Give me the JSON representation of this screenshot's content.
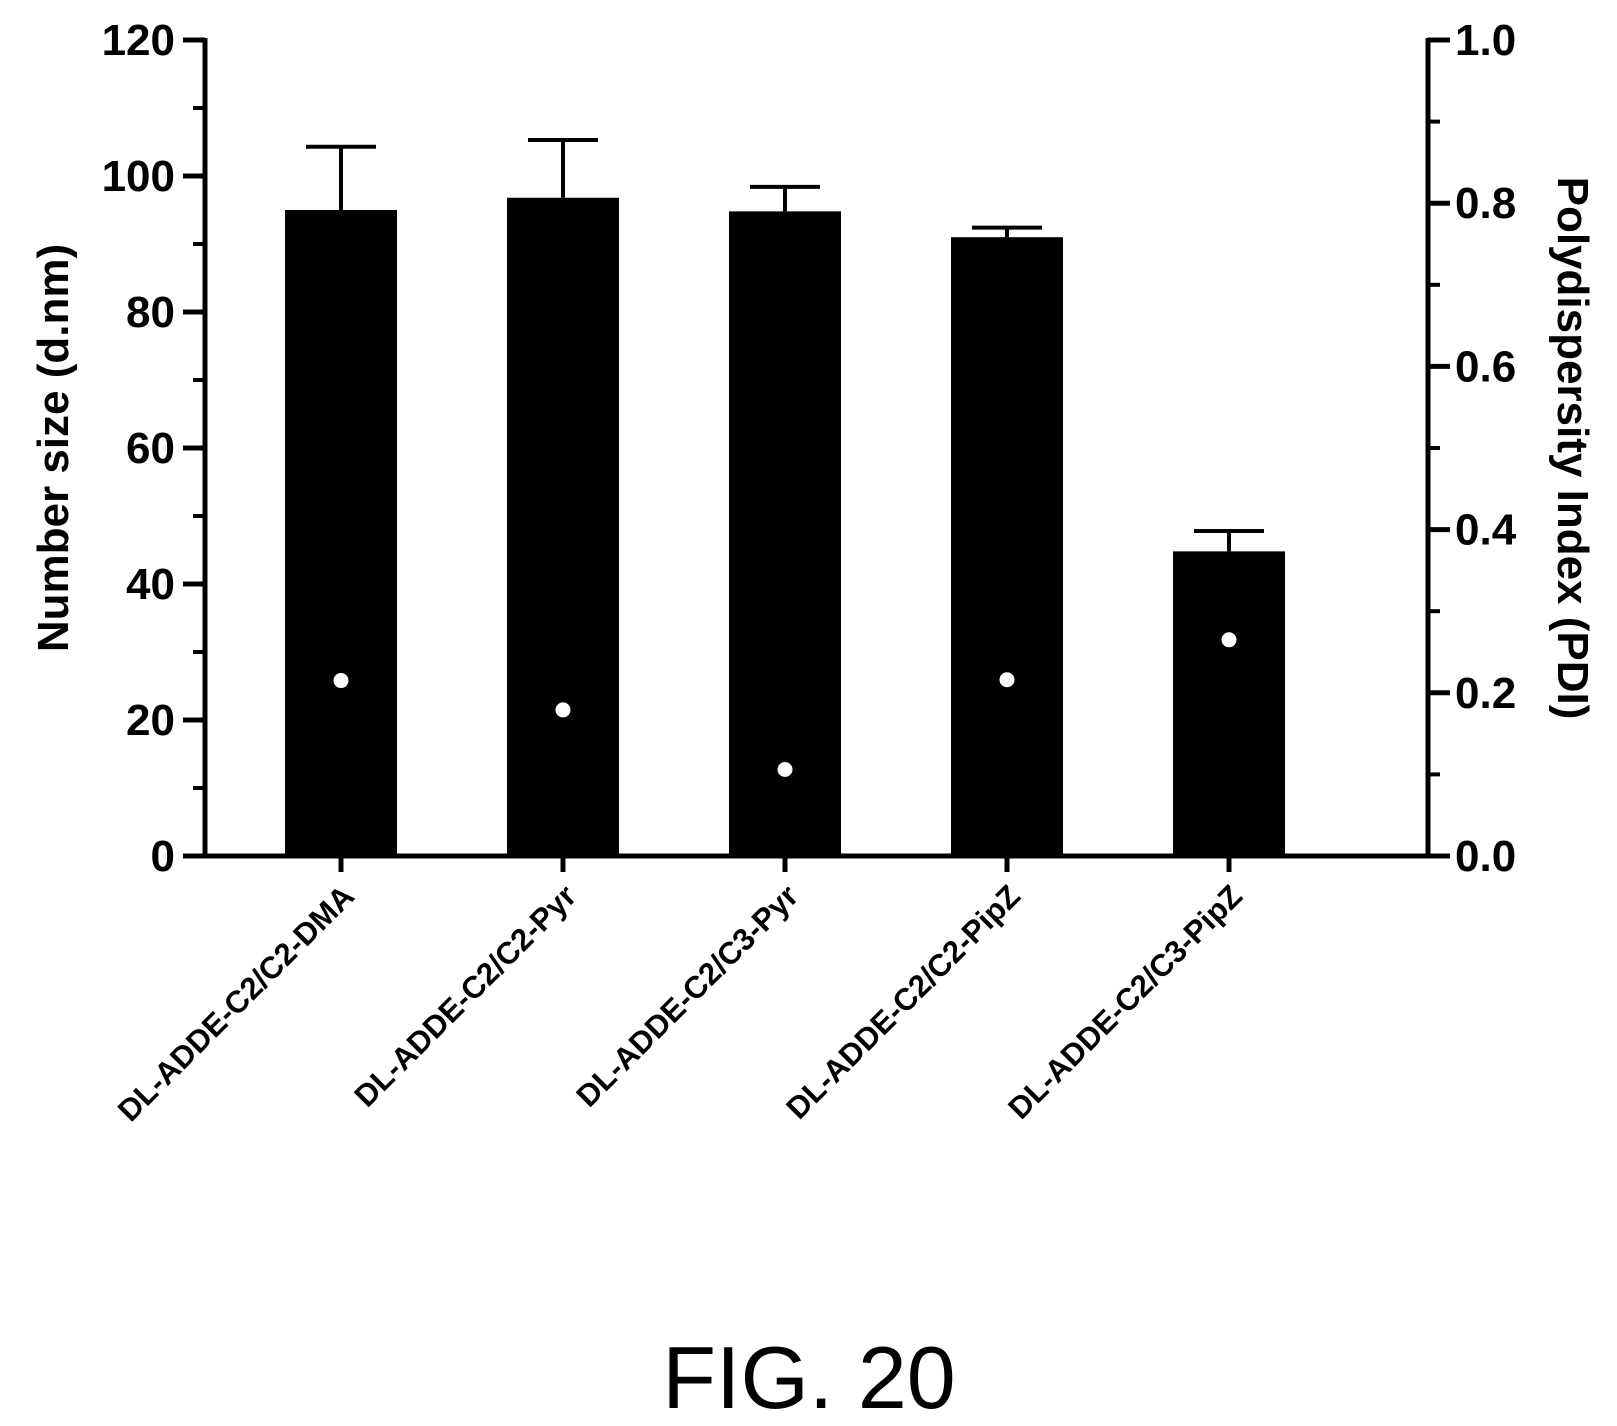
{
  "chart_data": {
    "type": "bar",
    "categories": [
      "DL-ADDE-C2/C2-DMA",
      "DL-ADDE-C2/C2-Pyr",
      "DL-ADDE-C2/C3-Pyr",
      "DL-ADDE-C2/C2-PipZ",
      "DL-ADDE-C2/C3-PipZ"
    ],
    "series": [
      {
        "values": [
          95.0,
          96.8,
          94.8,
          91.0,
          44.8
        ],
        "error_plus": [
          9.3,
          8.5,
          3.6,
          1.4,
          3.0
        ],
        "axis": "left",
        "mark": "bar",
        "color": "#000000"
      },
      {
        "values": [
          0.215,
          0.179,
          0.106,
          0.216,
          0.265
        ],
        "axis": "right",
        "mark": "point",
        "color": "#ffffff"
      }
    ],
    "ylabel": "Number size (d.nm)",
    "ylim": [
      0,
      120
    ],
    "yticks": [
      "0",
      "20",
      "40",
      "60",
      "80",
      "100",
      "120"
    ],
    "y2label": "Polydispersity Index (PDI)",
    "y2lim": [
      0,
      1.0
    ],
    "y2ticks": [
      "0.0",
      "0.2",
      "0.4",
      "0.6",
      "0.8",
      "1.0"
    ],
    "grid": false,
    "legend": "none"
  },
  "figure_label": "FIG. 20"
}
